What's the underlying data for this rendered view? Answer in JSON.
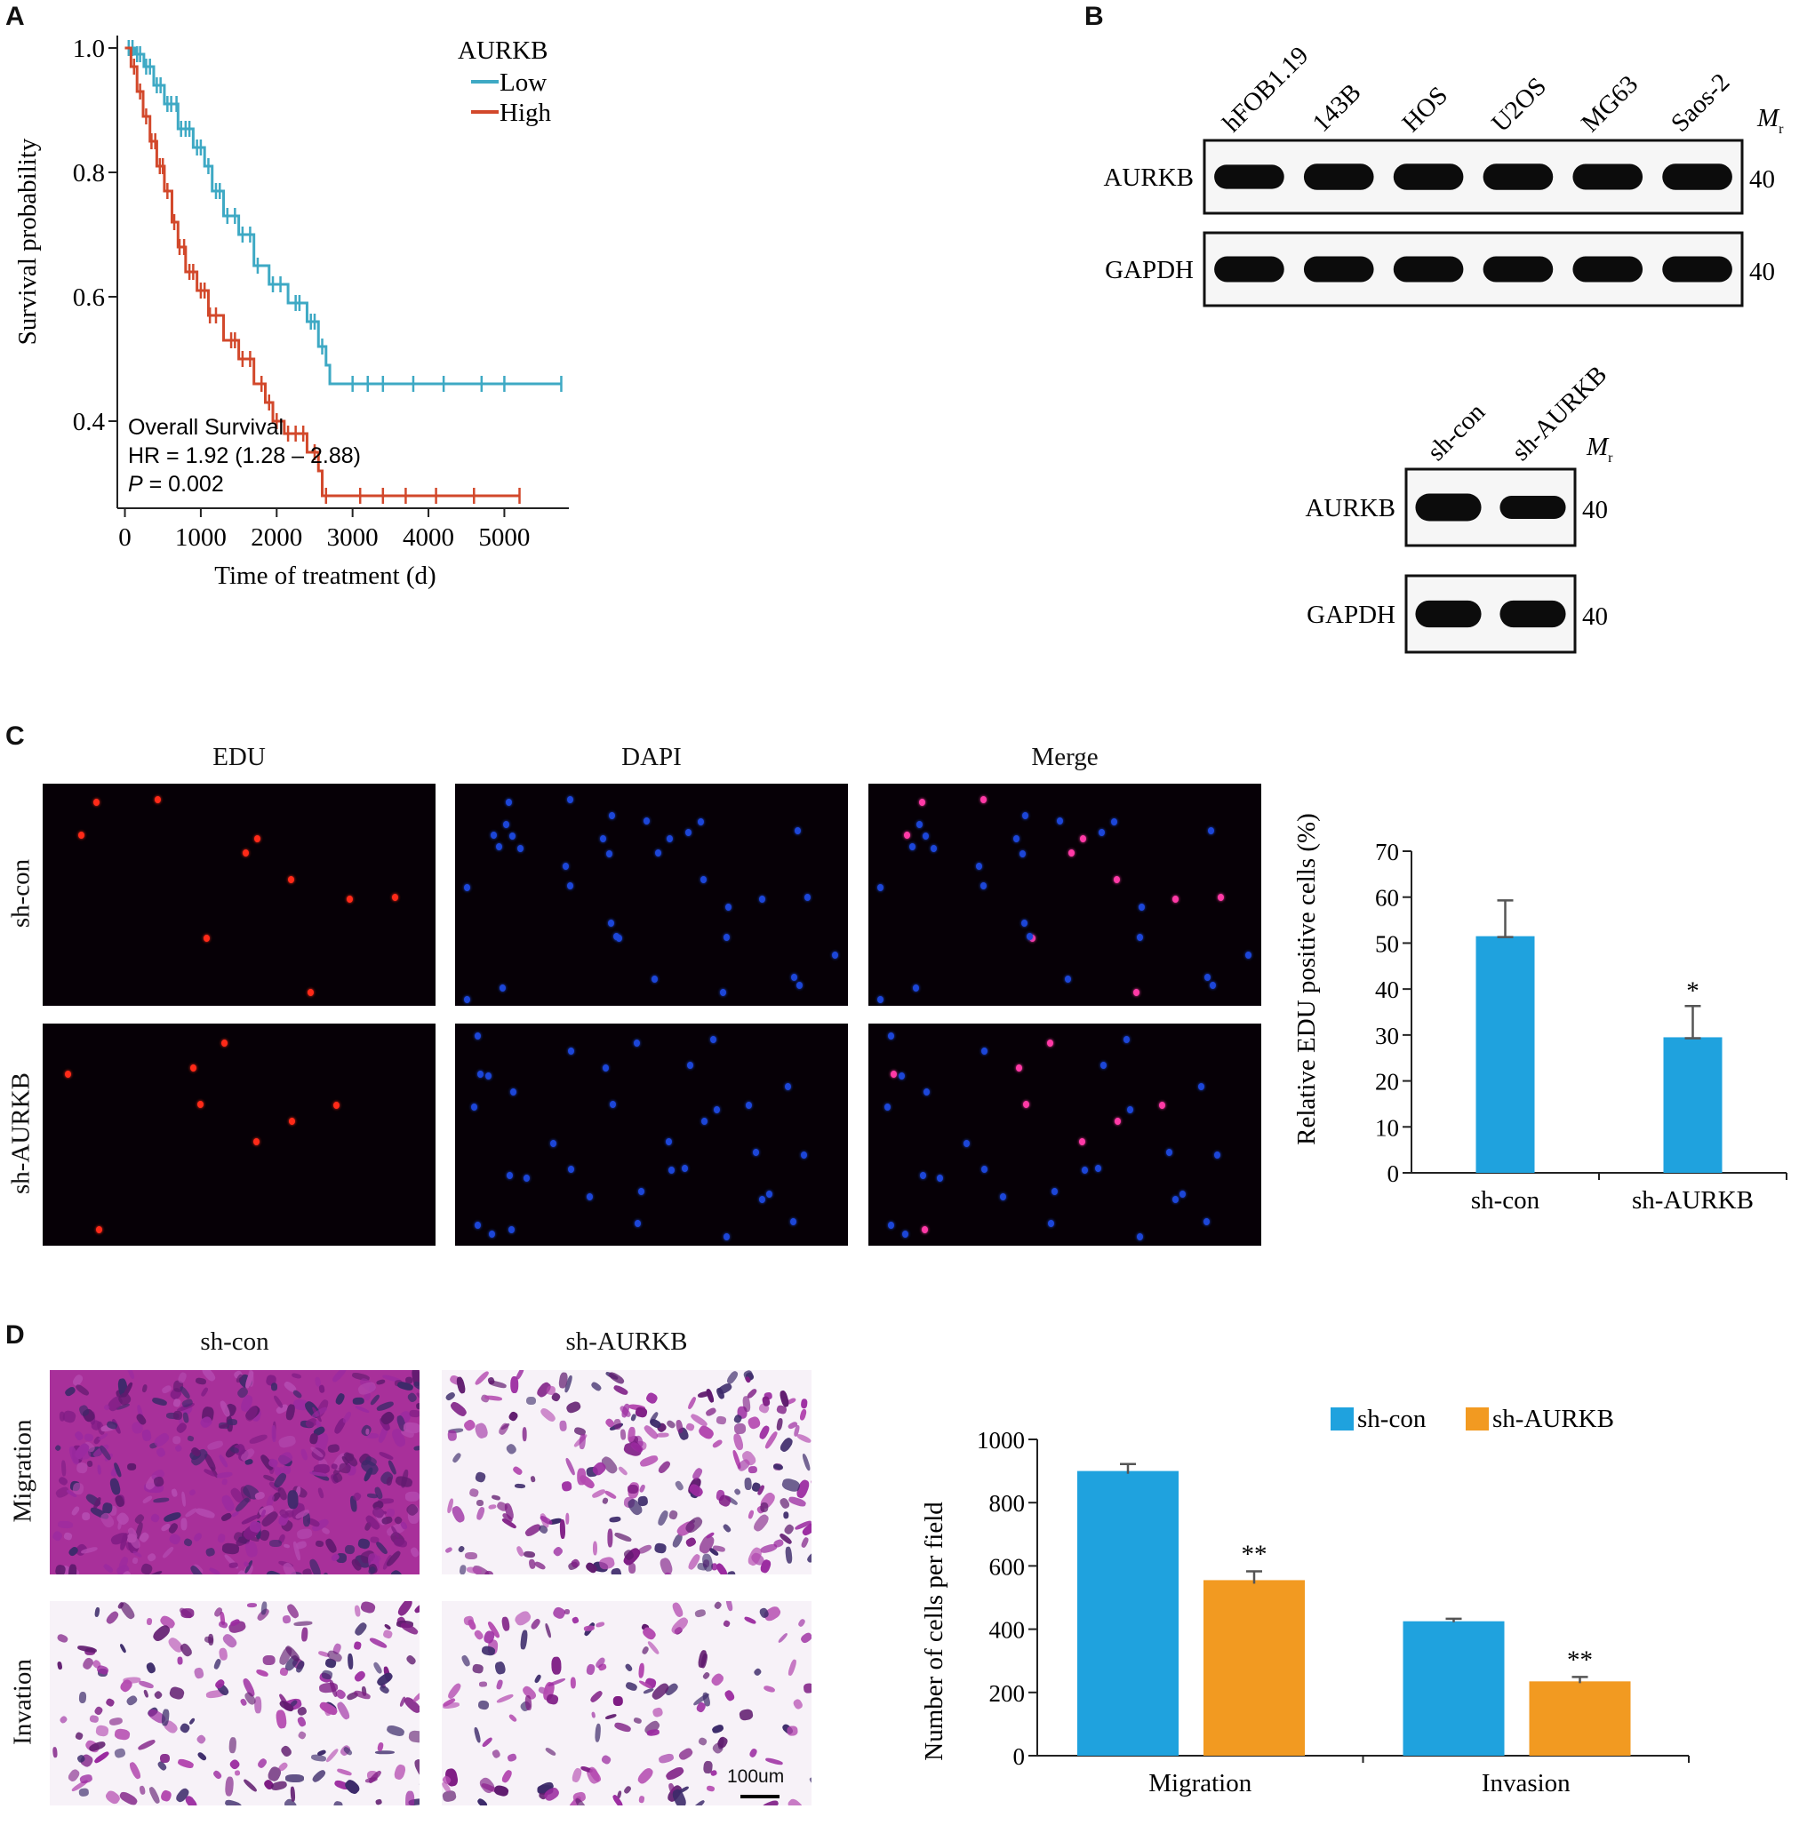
{
  "panels": {
    "a": "A",
    "b": "B",
    "c": "C",
    "d": "D"
  },
  "chart_data": [
    {
      "id": "A",
      "type": "line",
      "subtype": "kaplan-meier",
      "xlabel": "Time of treatment (d)",
      "ylabel": "Survival probability",
      "x_ticks": [
        0,
        1000,
        2000,
        3000,
        4000,
        5000
      ],
      "y_ticks": [
        0.4,
        0.6,
        0.8,
        1.0
      ],
      "xlim": [
        -100,
        5850
      ],
      "ylim": [
        0.26,
        1.02
      ],
      "legend_title": "AURKB",
      "legend_position": "top-right",
      "annotation": {
        "line1": "Overall Survival",
        "line2": "HR = 1.92 (1.28 – 2.88)",
        "p_label": "P",
        "p_value": " = 0.002"
      },
      "series": [
        {
          "name": "Low",
          "color": "#3ea9c4",
          "steps": [
            [
              0,
              1.0
            ],
            [
              130,
              0.99
            ],
            [
              250,
              0.97
            ],
            [
              380,
              0.94
            ],
            [
              520,
              0.91
            ],
            [
              700,
              0.87
            ],
            [
              900,
              0.84
            ],
            [
              1050,
              0.81
            ],
            [
              1150,
              0.77
            ],
            [
              1300,
              0.73
            ],
            [
              1500,
              0.7
            ],
            [
              1700,
              0.65
            ],
            [
              1900,
              0.62
            ],
            [
              2150,
              0.59
            ],
            [
              2400,
              0.56
            ],
            [
              2550,
              0.52
            ],
            [
              2650,
              0.49
            ],
            [
              2700,
              0.46
            ],
            [
              5750,
              0.46
            ]
          ],
          "censor_x": [
            50,
            100,
            160,
            200,
            280,
            330,
            420,
            470,
            560,
            610,
            680,
            740,
            800,
            850,
            950,
            1000,
            1100,
            1200,
            1250,
            1350,
            1450,
            1550,
            1650,
            1750,
            1950,
            2050,
            2250,
            2300,
            2450,
            2500,
            2600,
            3000,
            3200,
            3400,
            3800,
            4200,
            4700,
            5000,
            5750
          ]
        },
        {
          "name": "High",
          "color": "#d2482b",
          "steps": [
            [
              0,
              1.0
            ],
            [
              80,
              0.97
            ],
            [
              160,
              0.93
            ],
            [
              240,
              0.89
            ],
            [
              330,
              0.85
            ],
            [
              420,
              0.81
            ],
            [
              520,
              0.77
            ],
            [
              620,
              0.72
            ],
            [
              700,
              0.68
            ],
            [
              800,
              0.64
            ],
            [
              950,
              0.61
            ],
            [
              1100,
              0.57
            ],
            [
              1300,
              0.53
            ],
            [
              1500,
              0.5
            ],
            [
              1700,
              0.46
            ],
            [
              1850,
              0.43
            ],
            [
              1950,
              0.4
            ],
            [
              2100,
              0.38
            ],
            [
              2400,
              0.35
            ],
            [
              2550,
              0.32
            ],
            [
              2600,
              0.28
            ],
            [
              5200,
              0.28
            ]
          ],
          "censor_x": [
            120,
            200,
            280,
            350,
            400,
            460,
            500,
            560,
            650,
            720,
            780,
            850,
            900,
            1000,
            1050,
            1120,
            1200,
            1400,
            1450,
            1550,
            1650,
            1800,
            1900,
            2000,
            2150,
            2250,
            2350,
            2500,
            2650,
            3100,
            3400,
            3700,
            4100,
            4600,
            5200
          ]
        }
      ]
    },
    {
      "id": "C",
      "type": "bar",
      "ylabel": "Relative EDU positive cells (%)",
      "categories": [
        "sh-con",
        "sh-AURKB"
      ],
      "values": [
        51.5,
        29.5
      ],
      "errors": [
        7.8,
        6.8
      ],
      "significance": [
        "",
        "*"
      ],
      "y_ticks": [
        0,
        10,
        20,
        30,
        40,
        50,
        60,
        70
      ],
      "ylim": [
        0,
        70
      ],
      "color": "#1fa2de"
    },
    {
      "id": "D",
      "type": "bar",
      "ylabel": "Number of cells per field",
      "categories": [
        "Migration",
        "Invasion"
      ],
      "series": [
        {
          "name": "sh-con",
          "values": [
            900,
            425
          ],
          "errors": [
            22,
            8
          ],
          "significance": [
            "",
            ""
          ],
          "color": "#1fa2de"
        },
        {
          "name": "sh-AURKB",
          "values": [
            555,
            235
          ],
          "errors": [
            28,
            14
          ],
          "significance": [
            "**",
            "**"
          ],
          "color": "#f29a21"
        }
      ],
      "y_ticks": [
        0,
        200,
        400,
        600,
        800,
        1000
      ],
      "ylim": [
        0,
        1000
      ],
      "legend_position": "top"
    }
  ],
  "blot_top": {
    "lanes": [
      "hFOB1.19",
      "143B",
      "HOS",
      "U2OS",
      "MG63",
      "Saos-2"
    ],
    "mr_symbol": "M",
    "mr_sub": "r",
    "rows": [
      {
        "label": "AURKB",
        "mw": "40",
        "intensities": [
          0.8,
          1.0,
          1.0,
          1.0,
          0.95,
          1.0
        ]
      },
      {
        "label": "GAPDH",
        "mw": "40",
        "intensities": [
          0.95,
          0.95,
          0.95,
          0.95,
          0.95,
          0.95
        ]
      }
    ]
  },
  "blot_bottom": {
    "lanes": [
      "sh-con",
      "sh-AURKB"
    ],
    "mr_symbol": "M",
    "mr_sub": "r",
    "rows": [
      {
        "label": "AURKB",
        "mw": "40",
        "intensities": [
          1.0,
          0.6
        ]
      },
      {
        "label": "GAPDH",
        "mw": "40",
        "intensities": [
          0.95,
          0.95
        ]
      }
    ]
  },
  "edu_panel": {
    "columns": [
      "EDU",
      "DAPI",
      "Merge"
    ],
    "rows": [
      "sh-con",
      "sh-AURKB"
    ]
  },
  "transwell_panel": {
    "columns": [
      "sh-con",
      "sh-AURKB"
    ],
    "rows": [
      "Migration",
      "Invation"
    ],
    "scale_bar": "100um"
  }
}
